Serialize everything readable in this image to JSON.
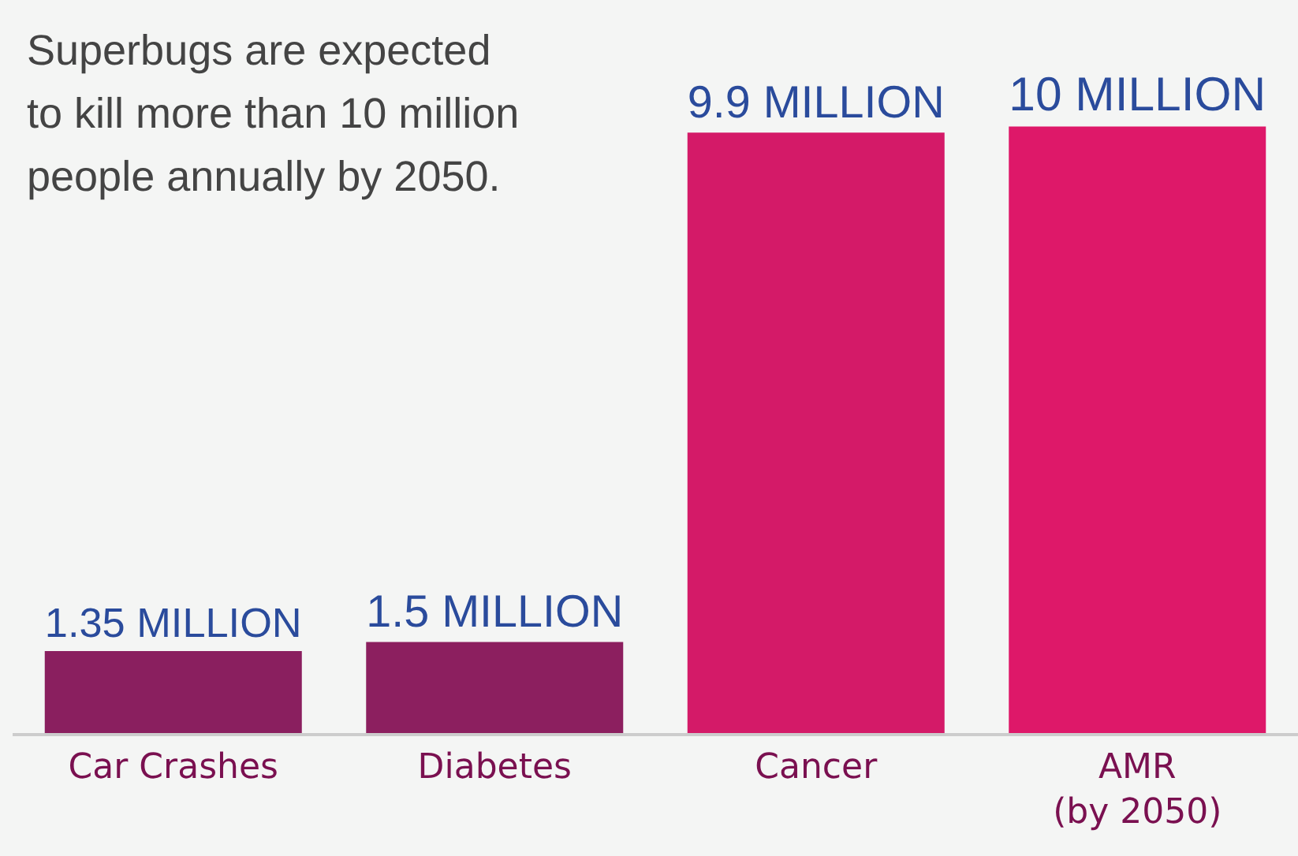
{
  "chart_data": {
    "type": "bar",
    "title": "Superbugs are expected to kill more than 10 million people annually by 2050.",
    "categories": [
      "Car Crashes",
      "Diabetes",
      "Cancer",
      "AMR (by 2050)"
    ],
    "values": [
      1.35,
      1.5,
      9.9,
      10
    ],
    "colors": [
      "#8a1f5f",
      "#8c1f5f",
      "#d41a68",
      "#de1869"
    ],
    "value_labels": [
      "1.35 MILLION",
      "1.5 MILLION",
      "9.9 MILLION",
      "10 MILLION"
    ],
    "grid": false
  }
}
